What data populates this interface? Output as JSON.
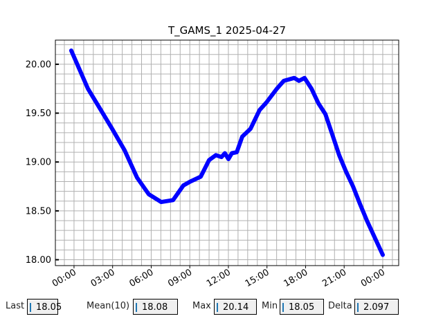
{
  "chart_data": {
    "type": "line",
    "title": "T_GAMS_1 2025-04-27",
    "xlabel": "",
    "ylabel": "",
    "x_unit": "hours since 00:00",
    "xlim": [
      -1.45,
      25.24
    ],
    "ylim": [
      17.94,
      20.247
    ],
    "grid": true,
    "xticks": [
      0,
      3,
      6,
      9,
      12,
      15,
      18,
      21,
      24
    ],
    "xtick_labels": [
      "00:00",
      "03:00",
      "06:00",
      "09:00",
      "12:00",
      "15:00",
      "18:00",
      "21:00",
      "00:00"
    ],
    "yticks": [
      18.0,
      18.5,
      19.0,
      19.5,
      20.0
    ],
    "ytick_labels": [
      "18.00",
      "18.50",
      "19.00",
      "19.50",
      "20.00"
    ],
    "series": [
      {
        "name": "T_GAMS_1",
        "color": "#0000ff",
        "x": [
          -0.22,
          1.08,
          2.05,
          2.96,
          3.93,
          4.9,
          5.81,
          6.78,
          7.7,
          8.5,
          9.04,
          9.85,
          10.5,
          11.03,
          11.46,
          11.73,
          12.0,
          12.27,
          12.65,
          13.08,
          13.72,
          14.42,
          14.96,
          15.77,
          16.31,
          17.12,
          17.49,
          17.92,
          18.46,
          19.0,
          19.54,
          20.08,
          20.61,
          21.15,
          21.69,
          22.23,
          22.77,
          23.3,
          24.0
        ],
        "y": [
          20.14,
          19.75,
          19.54,
          19.34,
          19.12,
          18.84,
          18.67,
          18.59,
          18.61,
          18.76,
          18.8,
          18.85,
          19.02,
          19.07,
          19.05,
          19.09,
          19.03,
          19.09,
          19.1,
          19.26,
          19.34,
          19.53,
          19.61,
          19.75,
          19.83,
          19.86,
          19.83,
          19.86,
          19.75,
          19.6,
          19.49,
          19.28,
          19.07,
          18.9,
          18.75,
          18.57,
          18.4,
          18.25,
          18.05
        ]
      }
    ]
  },
  "stats": {
    "last_label": "Last",
    "last_value": "18.05",
    "mean_label": "Mean(10)",
    "mean_value": "18.08",
    "max_label": "Max",
    "max_value": "20.14",
    "min_label": "Min",
    "min_value": "18.05",
    "delta_label": "Delta",
    "delta_value": "2.097"
  }
}
